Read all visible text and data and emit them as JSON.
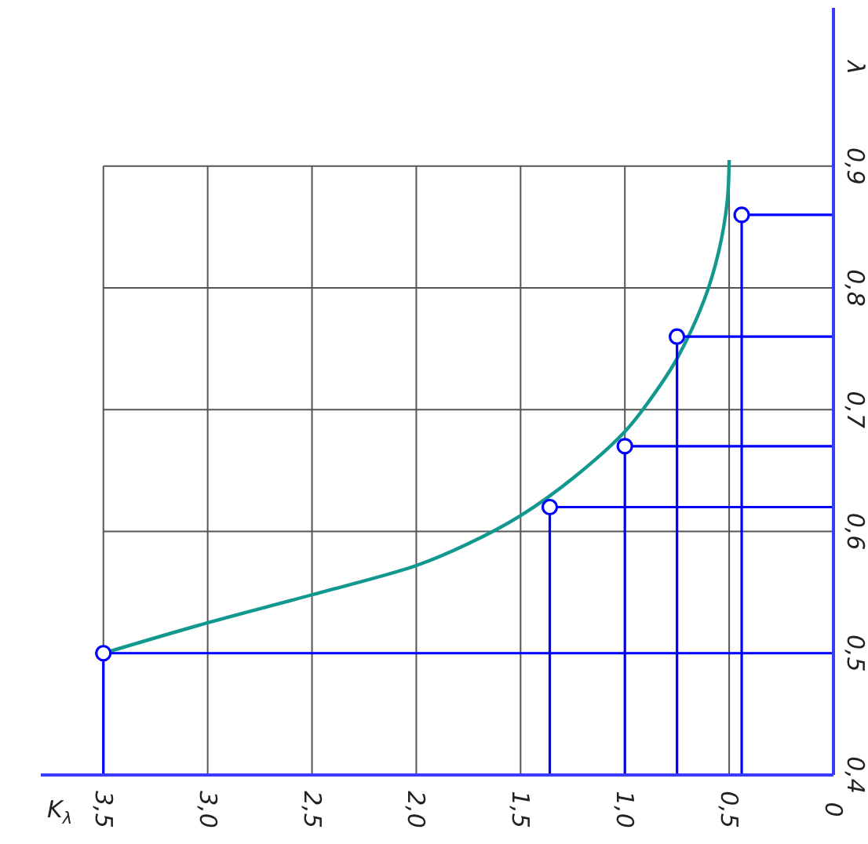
{
  "chart_data": {
    "type": "line",
    "xlabel": "K$_{λ}$",
    "ylabel": "λ",
    "xlim": [
      3.8,
      0
    ],
    "ylim": [
      0.4,
      1.03
    ],
    "xticks": [
      {
        "value": 3.5,
        "label": "3,5"
      },
      {
        "value": 3.0,
        "label": "3,0"
      },
      {
        "value": 2.5,
        "label": "2,5"
      },
      {
        "value": 2.0,
        "label": "2,0"
      },
      {
        "value": 1.5,
        "label": "1,5"
      },
      {
        "value": 1.0,
        "label": "1,0"
      },
      {
        "value": 0.5,
        "label": "0,5"
      },
      0
    ],
    "yticks": [
      {
        "value": 0.4,
        "label": "0,4"
      },
      {
        "value": 0.5,
        "label": "0,5"
      },
      {
        "value": 0.6,
        "label": "0,6"
      },
      {
        "value": 0.7,
        "label": "0,7"
      },
      {
        "value": 0.8,
        "label": "0,8"
      },
      {
        "value": 0.9,
        "label": "0,9"
      }
    ],
    "grid": true,
    "series": [
      {
        "color": "#12988f",
        "marker": "none",
        "x": [
          3.5,
          3.0,
          2.5,
          2.0,
          1.75,
          1.5,
          1.24,
          1.0,
          0.88,
          0.75,
          0.62,
          0.55,
          0.51,
          0.5
        ],
        "values": [
          0.5,
          0.525,
          0.548,
          0.572,
          0.59,
          0.613,
          0.645,
          0.682,
          0.708,
          0.742,
          0.79,
          0.83,
          0.87,
          0.905
        ]
      },
      {
        "color": "#0000ff",
        "marker": "none",
        "x": [
          3.5,
          3.5,
          0
        ],
        "values": [
          0.4,
          0.5,
          0.5
        ]
      },
      {
        "color": "#0000ff",
        "marker": "none",
        "x": [
          1.36,
          1.36,
          0
        ],
        "values": [
          0.4,
          0.62,
          0.62
        ]
      },
      {
        "color": "#0000ff",
        "marker": "none",
        "x": [
          1.0,
          1.0,
          0
        ],
        "values": [
          0.4,
          0.67,
          0.67
        ]
      },
      {
        "color": "#0000ff",
        "marker": "none",
        "x": [
          0.75,
          0.75,
          0
        ],
        "values": [
          0.4,
          0.76,
          0.76
        ]
      },
      {
        "color": "#0000ff",
        "marker": "none",
        "x": [
          0.44,
          0.44,
          0
        ],
        "values": [
          0.4,
          0.86,
          0.86
        ]
      },
      {
        "type": "scatter",
        "color": "#0000ff",
        "marker": "circle",
        "x": [
          3.5,
          1.36,
          1.0,
          0.75,
          0.44
        ],
        "values": [
          0.5,
          0.62,
          0.67,
          0.76,
          0.86
        ]
      }
    ]
  }
}
